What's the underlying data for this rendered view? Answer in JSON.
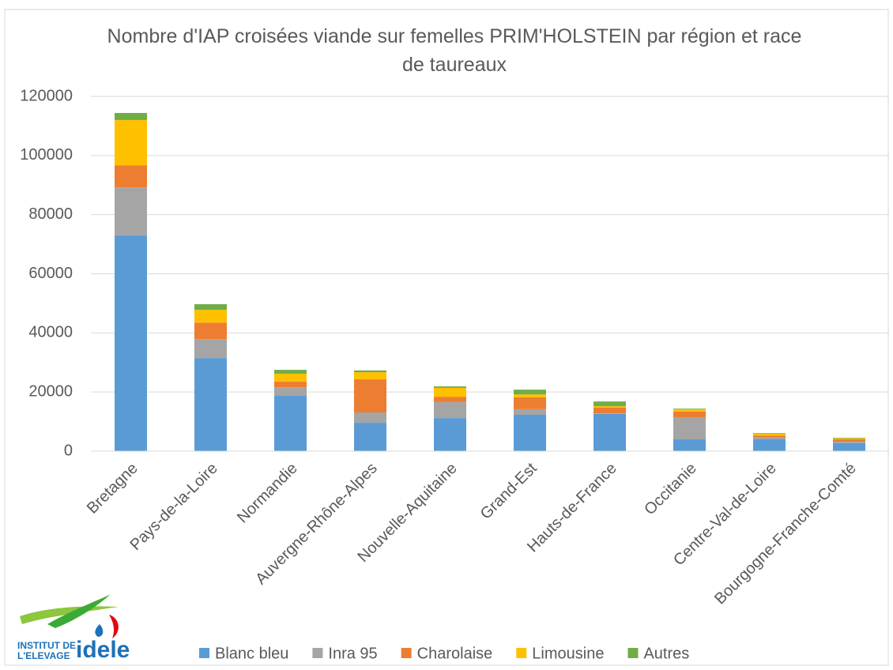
{
  "chart_data": {
    "type": "stacked_bar",
    "title": "Nombre d'IAP croisées viande sur femelles PRIM'HOLSTEIN par région et race de taureaux",
    "categories": [
      "Bretagne",
      "Pays-de-la-Loire",
      "Normandie",
      "Auvergne-Rhône-Alpes",
      "Nouvelle-Aquitaine",
      "Grand-Est",
      "Hauts-de-France",
      "Occitanie",
      "Centre-Val-de-Loire",
      "Bourgogne-Franche-Comté"
    ],
    "series": [
      {
        "name": "Blanc bleu",
        "color": "#5b9bd5",
        "values": [
          73000,
          31500,
          18700,
          9600,
          11200,
          12300,
          12600,
          4000,
          4000,
          2700
        ]
      },
      {
        "name": "Inra 95",
        "color": "#a5a5a5",
        "values": [
          16200,
          6400,
          2900,
          3500,
          5400,
          1900,
          200,
          7500,
          800,
          500
        ]
      },
      {
        "name": "Charolaise",
        "color": "#ed7d31",
        "values": [
          7500,
          5600,
          1900,
          11200,
          1800,
          4000,
          1900,
          1900,
          500,
          800
        ]
      },
      {
        "name": "Limousine",
        "color": "#ffc000",
        "values": [
          15300,
          4300,
          2700,
          2400,
          3000,
          1000,
          500,
          800,
          600,
          300
        ]
      },
      {
        "name": "Autres",
        "color": "#70ad47",
        "values": [
          2400,
          1900,
          1300,
          600,
          500,
          1600,
          1600,
          200,
          200,
          200
        ]
      }
    ],
    "ylim": [
      0,
      120000
    ],
    "yticks": [
      0,
      20000,
      40000,
      60000,
      80000,
      100000,
      120000
    ],
    "grid": true,
    "legend": "bottom"
  },
  "logo": {
    "line1": "INSTITUT DE",
    "line2": "L'ELEVAGE",
    "brand": "idele"
  }
}
